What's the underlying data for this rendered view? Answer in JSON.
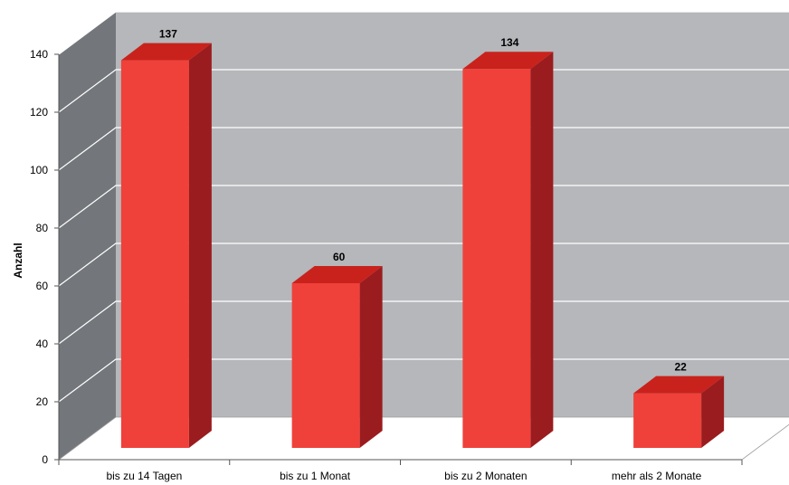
{
  "chart_data": {
    "type": "bar",
    "title": "",
    "xlabel": "",
    "ylabel": "Anzahl",
    "ylim": [
      0,
      140
    ],
    "yticks": [
      0,
      20,
      40,
      60,
      80,
      100,
      120,
      140
    ],
    "grid": true,
    "legend": "none",
    "style": "3d-column",
    "categories": [
      "bis zu 14 Tagen",
      "bis zu 1 Monat",
      "bis zu 2 Monaten",
      "mehr als 2 Monate"
    ],
    "values": [
      137,
      60,
      134,
      22
    ],
    "colors": {
      "bar_front": "#f0403a",
      "bar_top": "#c9221c",
      "bar_side": "#9a1c1e",
      "back_wall": "#b5b7ba",
      "side_wall": "#73767b",
      "floor": "#ffffff",
      "gridline": "#ffffff"
    }
  }
}
